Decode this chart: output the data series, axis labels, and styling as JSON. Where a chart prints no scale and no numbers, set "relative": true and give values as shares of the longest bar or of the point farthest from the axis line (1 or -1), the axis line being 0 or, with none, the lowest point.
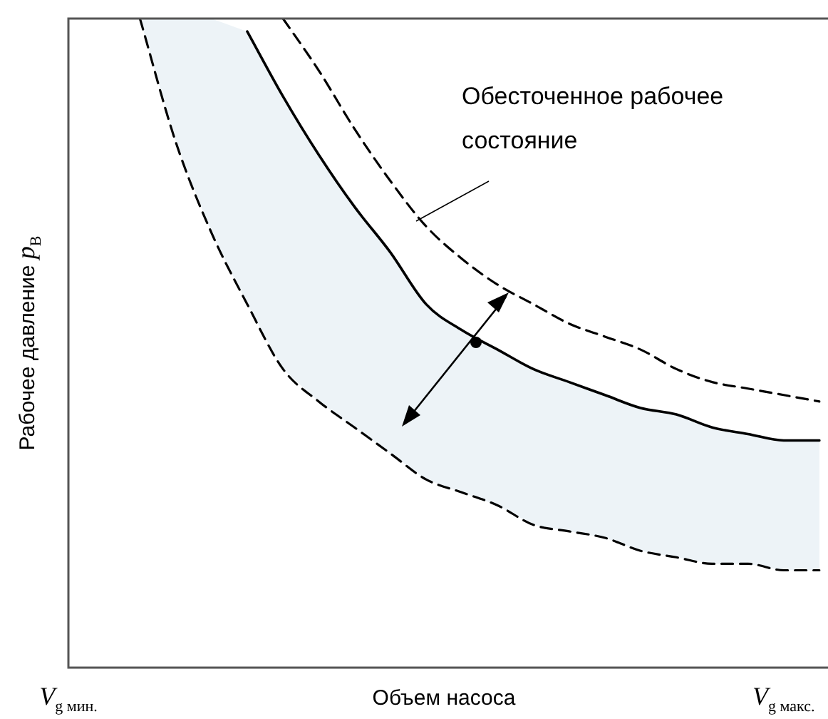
{
  "chart_data": {
    "type": "line",
    "relative": true,
    "xlabel": "Объем насоса",
    "ylabel": "Рабочее давление p$_{В}$",
    "categories": [
      "V$_{g мин.}$",
      null,
      null,
      null,
      null,
      null,
      null,
      null,
      null,
      null,
      null,
      null,
      null,
      null,
      null,
      null,
      null,
      null,
      null,
      null,
      "V$_{g макс.}$",
      null
    ],
    "legend": false,
    "marker": "none",
    "annotations": [
      "Обесточенное рабочее состояние"
    ],
    "series": [
      {
        "color": "#000000",
        "line_style": "dashed",
        "values": [
          null,
          null,
          1.0,
          0.81,
          0.67,
          0.56,
          0.46,
          0.41,
          0.37,
          0.33,
          0.29,
          0.27,
          0.25,
          0.22,
          0.21,
          0.2,
          0.18,
          0.17,
          0.16,
          0.16,
          0.15,
          0.15
        ]
      },
      {
        "color": "#000000",
        "line_style": "solid",
        "values": [
          null,
          null,
          null,
          null,
          null,
          0.98,
          0.88,
          0.79,
          0.71,
          0.64,
          0.56,
          0.52,
          0.49,
          0.46,
          0.44,
          0.42,
          0.4,
          0.39,
          0.37,
          0.36,
          0.35,
          0.35
        ],
        "lower": [
          null,
          null,
          1.0,
          0.81,
          0.67,
          0.56,
          0.46,
          0.41,
          0.37,
          0.33,
          0.29,
          0.27,
          0.25,
          0.22,
          0.21,
          0.2,
          0.18,
          0.17,
          0.16,
          0.16,
          0.15,
          0.15
        ],
        "upper": [
          null,
          null,
          1,
          1,
          1,
          0.98,
          0.88,
          0.79,
          0.71,
          0.64,
          0.56,
          0.52,
          0.49,
          0.46,
          0.44,
          0.42,
          0.4,
          0.39,
          0.37,
          0.36,
          0.35,
          0.35
        ]
      },
      {
        "color": "#000000",
        "line_style": "dashed",
        "values": [
          null,
          null,
          null,
          null,
          null,
          null,
          1.0,
          0.92,
          0.83,
          0.75,
          0.68,
          0.63,
          0.59,
          0.56,
          0.53,
          0.51,
          0.49,
          0.46,
          0.44,
          0.43,
          0.42,
          0.41
        ]
      }
    ]
  }
}
